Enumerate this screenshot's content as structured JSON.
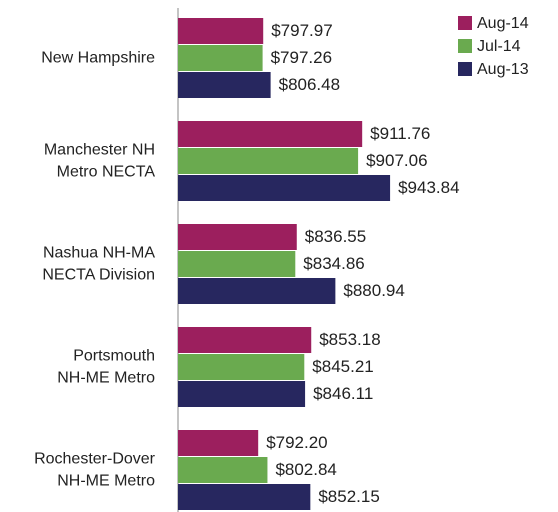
{
  "chart_data": {
    "type": "hbar",
    "categories": [
      [
        "New Hampshire"
      ],
      [
        "Manchester NH",
        "Metro NECTA"
      ],
      [
        "Nashua NH-MA",
        "NECTA Division"
      ],
      [
        "Portsmouth",
        "NH-ME Metro"
      ],
      [
        "Rochester-Dover",
        "NH-ME Metro"
      ]
    ],
    "series": [
      {
        "name": "Aug-14",
        "color": "#9c1f5e",
        "values": [
          797.97,
          911.76,
          836.55,
          853.18,
          792.2
        ],
        "value_labels": [
          "$797.97",
          "$911.76",
          "$836.55",
          "$853.18",
          "$792.20"
        ]
      },
      {
        "name": "Jul-14",
        "color": "#6aaa4f",
        "values": [
          797.26,
          907.06,
          834.86,
          845.21,
          802.84
        ],
        "value_labels": [
          "$797.26",
          "$907.06",
          "$834.86",
          "$845.21",
          "$802.84"
        ]
      },
      {
        "name": "Aug-13",
        "color": "#27275f",
        "values": [
          806.48,
          943.84,
          880.94,
          846.11,
          852.15
        ],
        "value_labels": [
          "$806.48",
          "$943.84",
          "$880.94",
          "$846.11",
          "$852.15"
        ]
      }
    ],
    "xlim": [
      700,
      1130
    ],
    "legend": "top-right"
  }
}
